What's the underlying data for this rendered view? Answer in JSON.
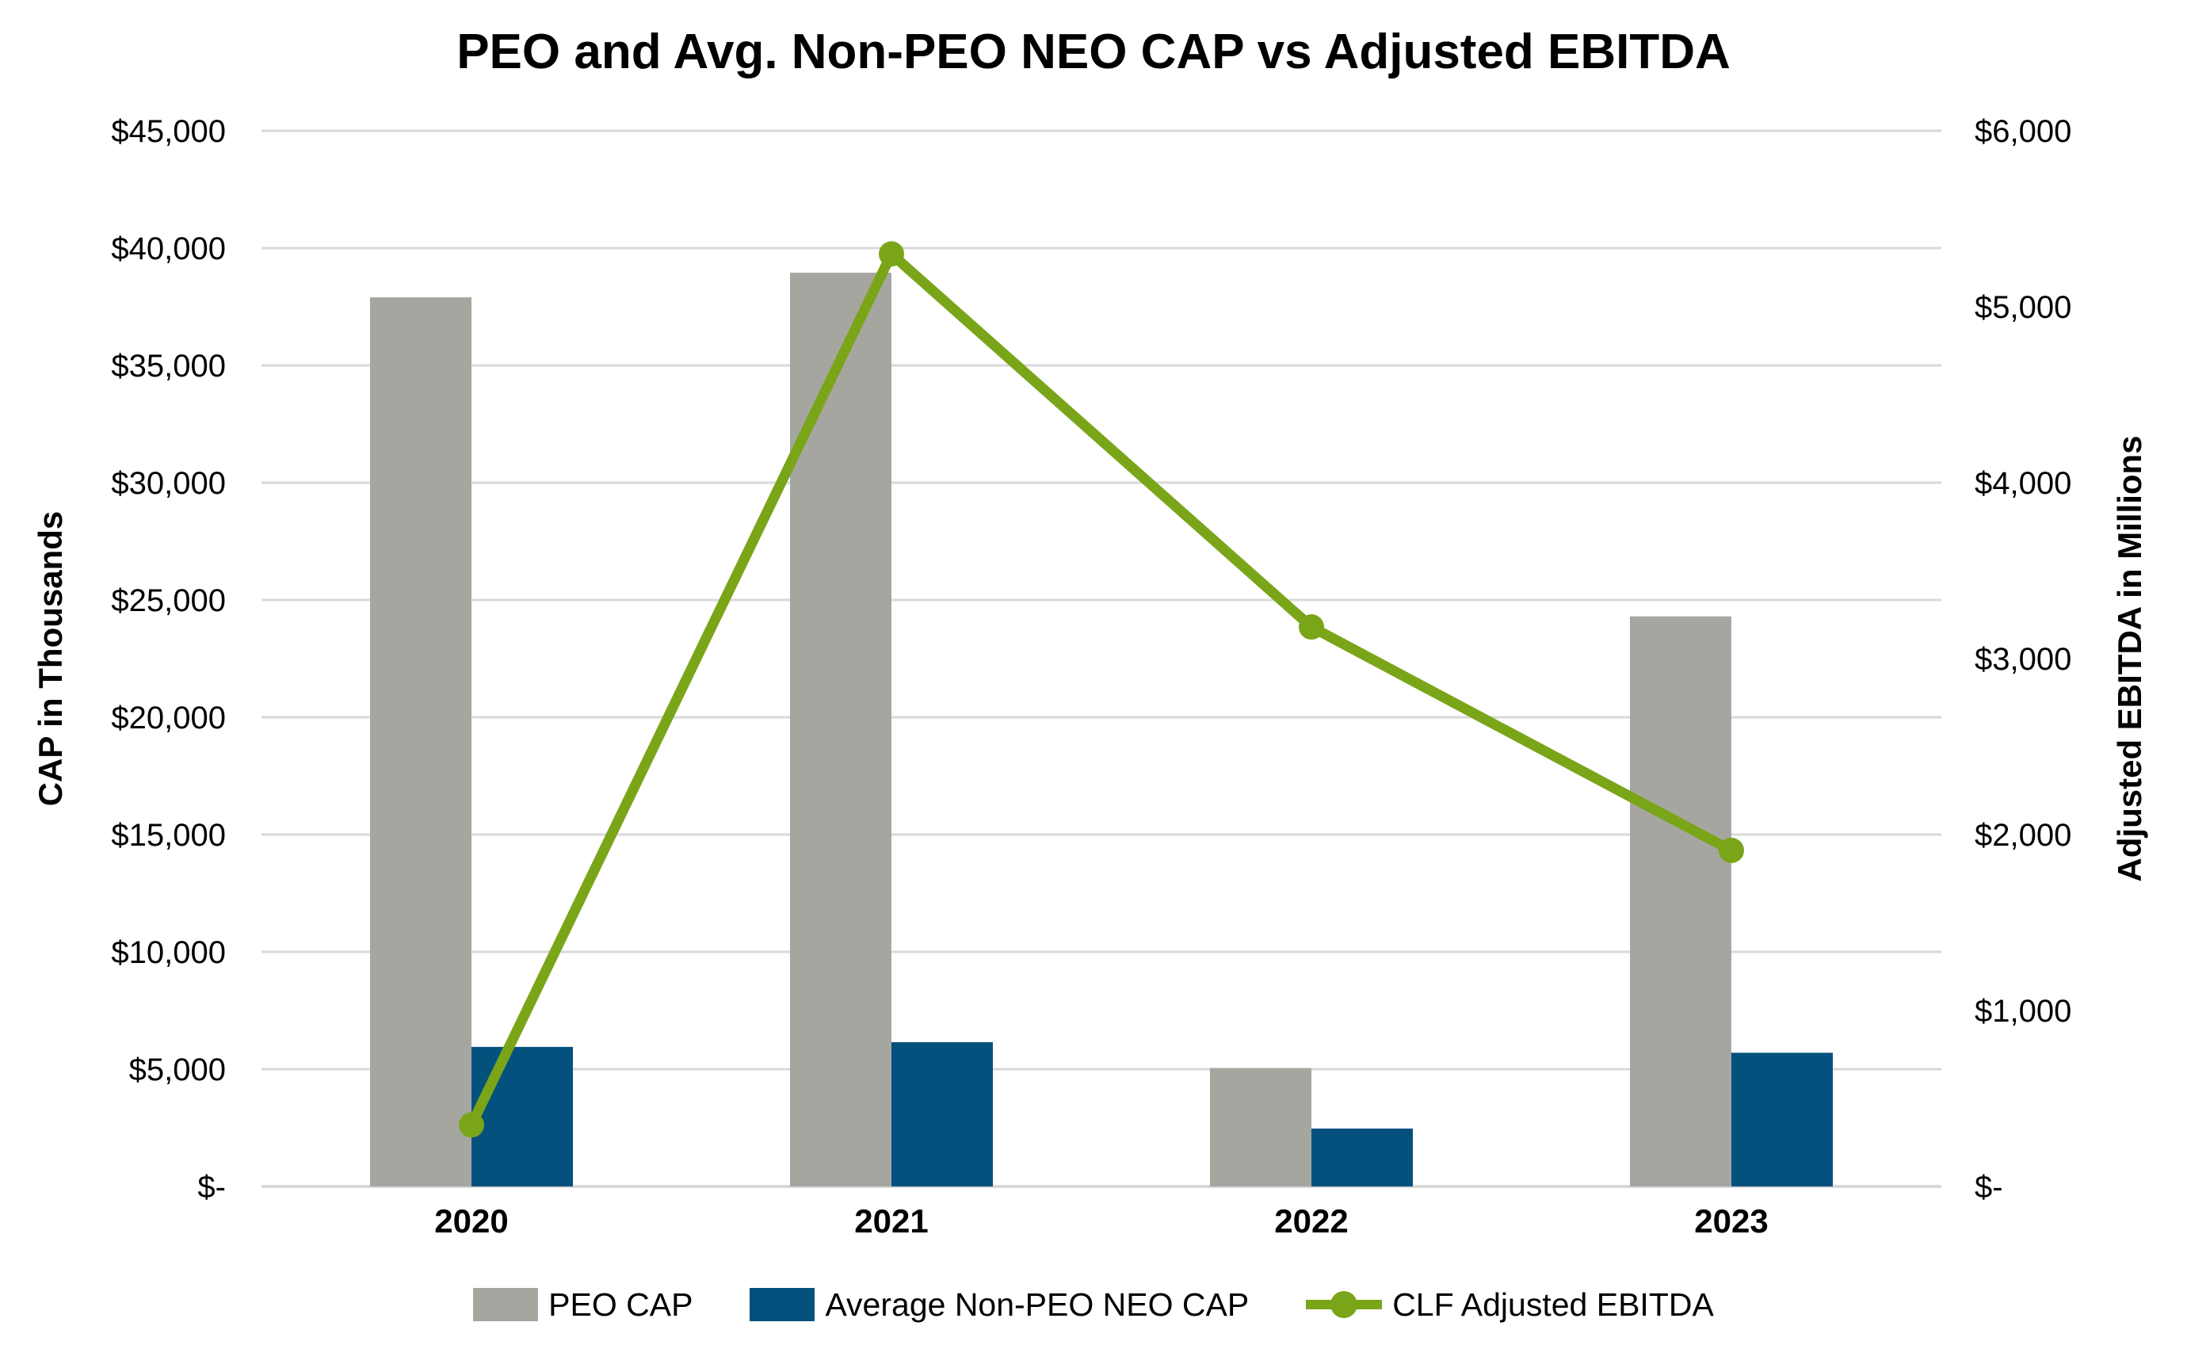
{
  "title": "PEO and Avg. Non-PEO NEO CAP vs Adjusted EBITDA",
  "chart_data": {
    "type": "combo bar+line, dual axis",
    "categories": [
      "2020",
      "2021",
      "2022",
      "2023"
    ],
    "bar_series": [
      {
        "name": "PEO CAP",
        "axis": "left",
        "color": "#a6a6a0",
        "values": [
          37900,
          38950,
          5050,
          24300
        ]
      },
      {
        "name": "Average Non-PEO NEO CAP",
        "axis": "left",
        "color": "#04517e",
        "values": [
          5950,
          6150,
          2470,
          5700
        ]
      }
    ],
    "line_series": {
      "name": "CLF Adjusted EBITDA",
      "axis": "right",
      "color": "#7aa519",
      "values": [
        350,
        5300,
        3180,
        1910
      ]
    },
    "left_axis": {
      "title": "CAP in Thousands",
      "min": 0,
      "max": 45000,
      "step": 5000,
      "tick_labels": [
        "$45,000",
        "$40,000",
        "$35,000",
        "$30,000",
        "$25,000",
        "$20,000",
        "$15,000",
        "$10,000",
        "$5,000",
        "$-"
      ]
    },
    "right_axis": {
      "title": "Adjusted EBITDA in Millions",
      "min": 0,
      "max": 6000,
      "step": 1000,
      "tick_labels": [
        "$6,000",
        "$5,000",
        "$4,000",
        "$3,000",
        "$2,000",
        "$1,000",
        "$-"
      ]
    },
    "grid": true,
    "gridline_color": "#d9d9d9",
    "legend_position": "bottom"
  }
}
